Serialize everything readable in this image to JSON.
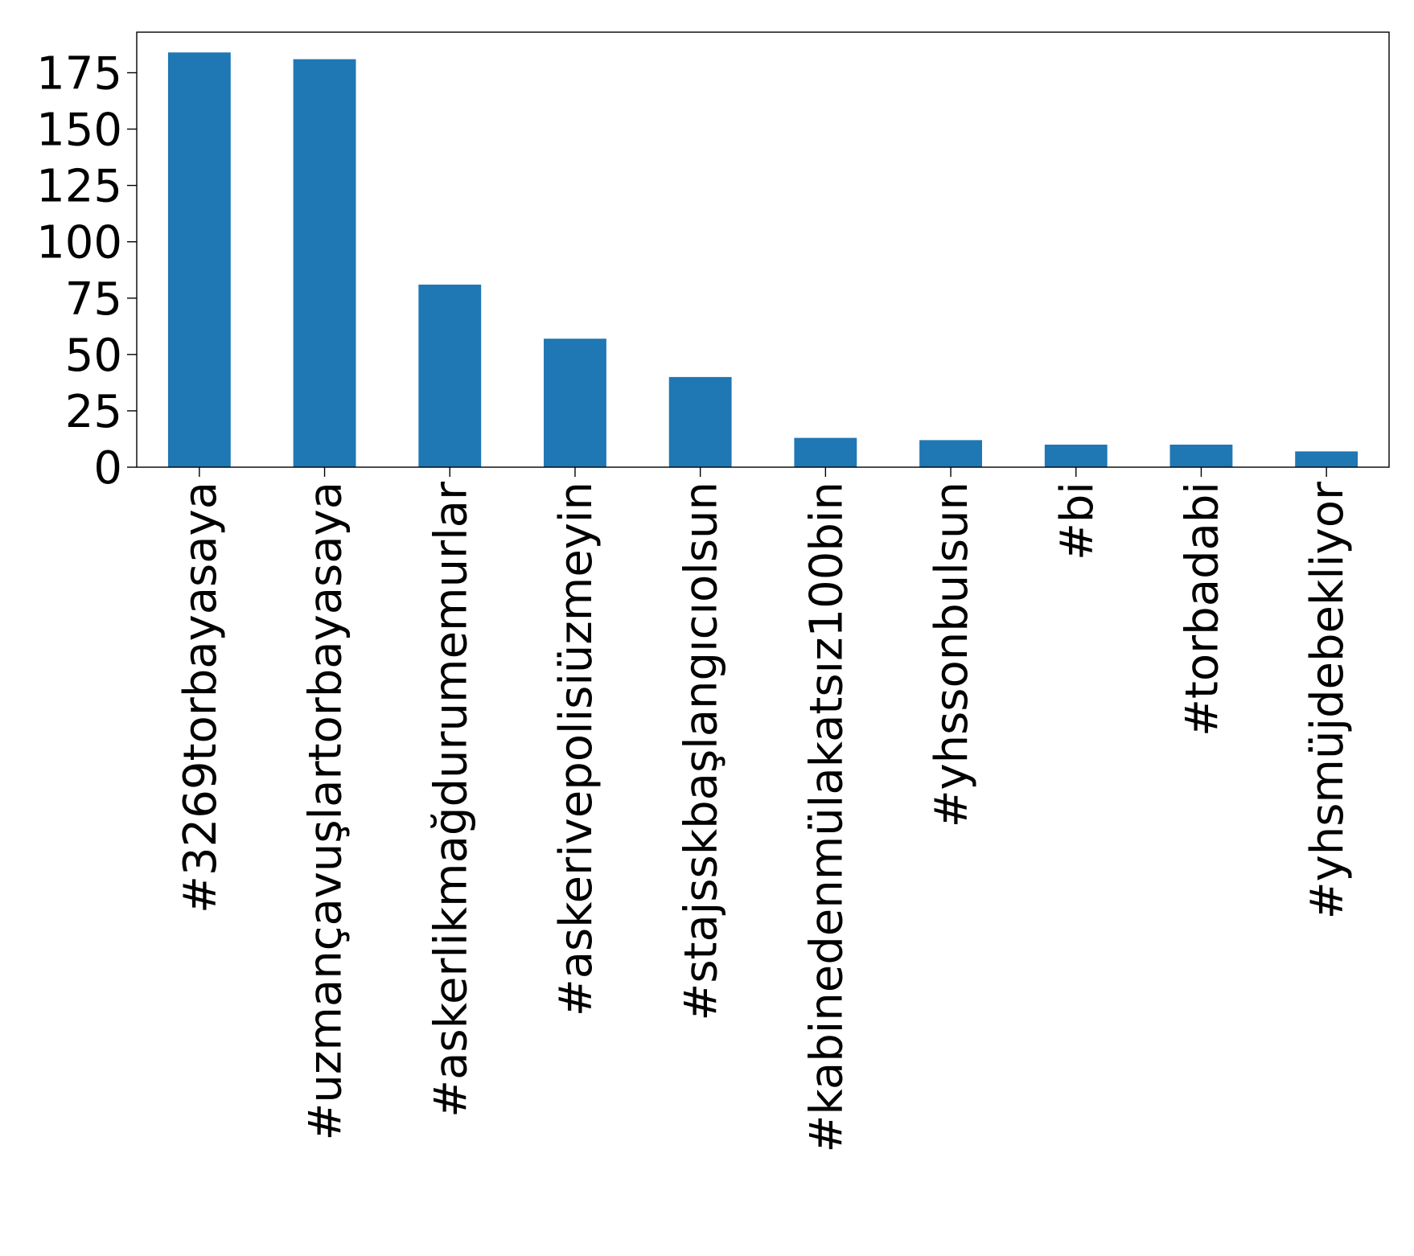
{
  "chart_data": {
    "type": "bar",
    "categories": [
      "#3269torbayasaya",
      "#uzmançavuşlartorbayasaya",
      "#askerlikmağdurumemurlar",
      "#askerivepolisiüzmeyin",
      "#stajsskbaşlangıcıolsun",
      "#kabinedenmülakatsız100bin",
      "#yhssonbulsun",
      "#bi",
      "#torbadabi",
      "#yhsmüjdebekliyor"
    ],
    "values": [
      184,
      181,
      81,
      57,
      40,
      13,
      12,
      10,
      10,
      7
    ],
    "title": "",
    "xlabel": "",
    "ylabel": "",
    "ylim": [
      0,
      193
    ],
    "yticks": [
      0,
      25,
      50,
      75,
      100,
      125,
      150,
      175
    ],
    "colors": {
      "bar": "#1f77b4",
      "axis": "#000000",
      "background": "#ffffff"
    },
    "grid": false,
    "legend": "none"
  }
}
